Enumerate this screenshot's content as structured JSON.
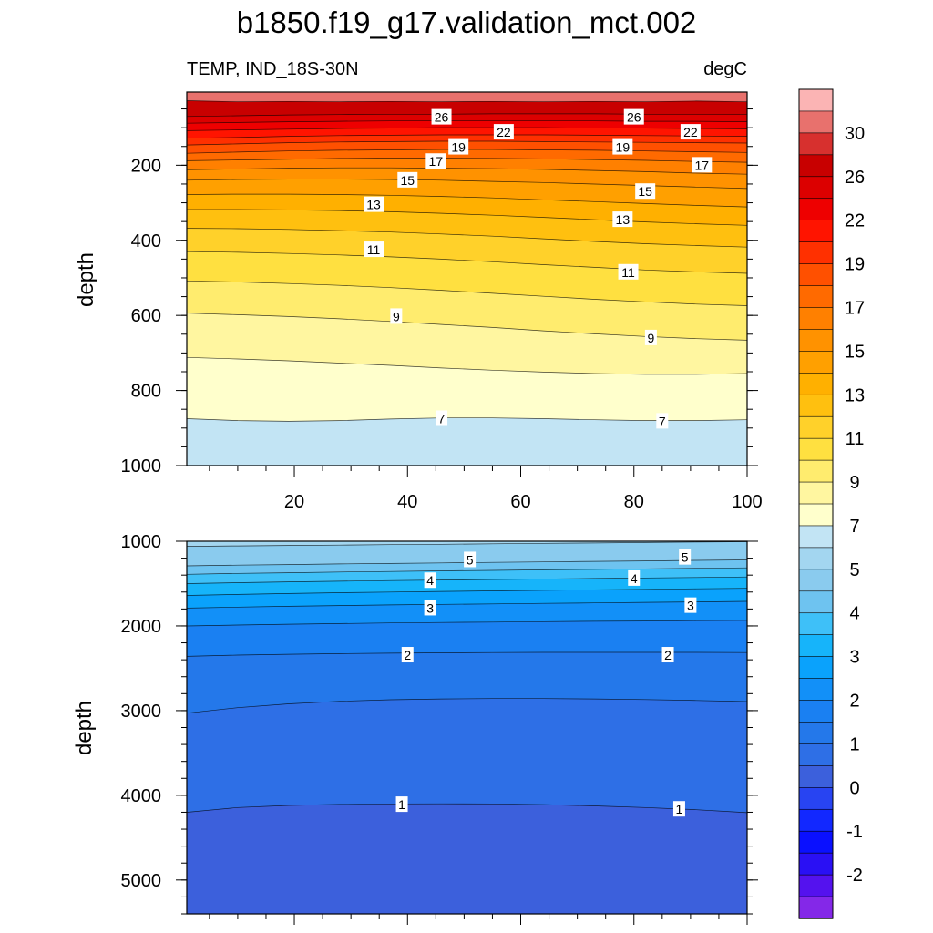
{
  "chart_data": [
    {
      "type": "contour",
      "panel": "upper",
      "title": "b1850.f19_g17.validation_mct.002",
      "left_subtitle": "TEMP, IND_18S-30N",
      "right_subtitle": "degC",
      "ylabel": "depth",
      "xlim": [
        1,
        100
      ],
      "ylim": [
        1000,
        5
      ],
      "y_reversed": true,
      "x_ticks": [
        20,
        40,
        60,
        80,
        100
      ],
      "y_ticks": [
        200,
        400,
        600,
        800,
        1000
      ],
      "isolines": [
        {
          "level": 27,
          "y": [
            28,
            31,
            30,
            31,
            30,
            31,
            30,
            31,
            30,
            31,
            29,
            31
          ]
        },
        {
          "level": 26,
          "y": [
            70,
            68,
            66,
            65,
            64,
            64,
            63,
            63,
            63,
            64,
            64,
            65
          ]
        },
        {
          "level": 24,
          "y": [
            88,
            86,
            84,
            83,
            82,
            82,
            82,
            82,
            82,
            83,
            83,
            84
          ]
        },
        {
          "level": 22,
          "y": [
            108,
            106,
            104,
            102,
            101,
            100,
            100,
            100,
            101,
            101,
            102,
            103
          ]
        },
        {
          "level": 20,
          "y": [
            128,
            126,
            123,
            121,
            120,
            119,
            119,
            119,
            120,
            121,
            122,
            123
          ]
        },
        {
          "level": 19,
          "y": [
            146,
            143,
            140,
            138,
            137,
            136,
            136,
            137,
            138,
            139,
            140,
            141
          ]
        },
        {
          "level": 18,
          "y": [
            168,
            165,
            162,
            160,
            159,
            158,
            158,
            159,
            160,
            162,
            164,
            166
          ]
        },
        {
          "level": 17,
          "y": [
            188,
            186,
            184,
            182,
            181,
            181,
            182,
            183,
            185,
            187,
            190,
            192
          ]
        },
        {
          "level": 16,
          "y": [
            212,
            210,
            208,
            207,
            207,
            208,
            209,
            211,
            214,
            217,
            221,
            224
          ]
        },
        {
          "level": 15,
          "y": [
            240,
            238,
            237,
            237,
            238,
            240,
            243,
            246,
            250,
            254,
            258,
            262
          ]
        },
        {
          "level": 14,
          "y": [
            278,
            277,
            277,
            278,
            280,
            283,
            287,
            292,
            297,
            302,
            307,
            311
          ]
        },
        {
          "level": 13,
          "y": [
            318,
            318,
            319,
            321,
            324,
            328,
            333,
            339,
            345,
            351,
            356,
            360
          ]
        },
        {
          "level": 12,
          "y": [
            368,
            369,
            371,
            374,
            378,
            383,
            389,
            396,
            403,
            409,
            414,
            418
          ]
        },
        {
          "level": 11,
          "y": [
            430,
            432,
            435,
            439,
            444,
            450,
            457,
            465,
            472,
            479,
            484,
            488
          ]
        },
        {
          "level": 10,
          "y": [
            508,
            511,
            515,
            520,
            526,
            533,
            541,
            549,
            557,
            564,
            570,
            574
          ]
        },
        {
          "level": 9,
          "y": [
            594,
            598,
            603,
            609,
            616,
            624,
            632,
            641,
            649,
            656,
            662,
            666
          ]
        },
        {
          "level": 8,
          "y": [
            712,
            716,
            721,
            727,
            733,
            740,
            746,
            751,
            755,
            757,
            757,
            755
          ]
        },
        {
          "level": 7,
          "y": [
            875,
            880,
            882,
            880,
            876,
            873,
            873,
            875,
            878,
            880,
            880,
            878
          ]
        }
      ],
      "labels": [
        {
          "text": "26",
          "x": 46,
          "y": 72
        },
        {
          "text": "26",
          "x": 80,
          "y": 72
        },
        {
          "text": "22",
          "x": 57,
          "y": 112
        },
        {
          "text": "22",
          "x": 90,
          "y": 112
        },
        {
          "text": "19",
          "x": 49,
          "y": 152
        },
        {
          "text": "19",
          "x": 78,
          "y": 152
        },
        {
          "text": "17",
          "x": 45,
          "y": 190
        },
        {
          "text": "17",
          "x": 92,
          "y": 200
        },
        {
          "text": "15",
          "x": 40,
          "y": 240
        },
        {
          "text": "15",
          "x": 82,
          "y": 270
        },
        {
          "text": "13",
          "x": 34,
          "y": 305
        },
        {
          "text": "13",
          "x": 78,
          "y": 345
        },
        {
          "text": "11",
          "x": 34,
          "y": 425
        },
        {
          "text": "11",
          "x": 79,
          "y": 485
        },
        {
          "text": "9",
          "x": 38,
          "y": 603
        },
        {
          "text": "9",
          "x": 83,
          "y": 660
        },
        {
          "text": "7",
          "x": 46,
          "y": 875
        },
        {
          "text": "7",
          "x": 85,
          "y": 882
        }
      ]
    },
    {
      "type": "contour",
      "panel": "lower",
      "ylabel": "depth",
      "xlim": [
        1,
        100
      ],
      "ylim": [
        5400,
        1000
      ],
      "y_reversed": true,
      "y_ticks": [
        1000,
        2000,
        3000,
        4000,
        5000
      ],
      "isolines": [
        {
          "level": 6,
          "y": [
            1060,
            1055,
            1050,
            1045,
            1040,
            1035,
            1030,
            1025,
            1020,
            1015,
            1010,
            1005
          ]
        },
        {
          "level": 5,
          "y": [
            1290,
            1282,
            1275,
            1268,
            1262,
            1256,
            1250,
            1244,
            1238,
            1232,
            1226,
            1220
          ]
        },
        {
          "level": 4.5,
          "y": [
            1390,
            1380,
            1372,
            1364,
            1357,
            1350,
            1344,
            1338,
            1332,
            1326,
            1320,
            1314
          ]
        },
        {
          "level": 4,
          "y": [
            1500,
            1490,
            1480,
            1472,
            1465,
            1458,
            1452,
            1446,
            1440,
            1434,
            1428,
            1422
          ]
        },
        {
          "level": 3.5,
          "y": [
            1640,
            1628,
            1617,
            1608,
            1600,
            1593,
            1586,
            1580,
            1574,
            1568,
            1562,
            1556
          ]
        },
        {
          "level": 3,
          "y": [
            1790,
            1778,
            1768,
            1760,
            1752,
            1746,
            1740,
            1734,
            1728,
            1722,
            1716,
            1710
          ]
        },
        {
          "level": 2.5,
          "y": [
            2000,
            1990,
            1980,
            1972,
            1965,
            1960,
            1955,
            1950,
            1946,
            1942,
            1938,
            1935
          ]
        },
        {
          "level": 2,
          "y": [
            2360,
            2345,
            2335,
            2328,
            2322,
            2318,
            2315,
            2313,
            2312,
            2312,
            2313,
            2315
          ]
        },
        {
          "level": 1.5,
          "y": [
            3030,
            2965,
            2920,
            2890,
            2872,
            2862,
            2858,
            2858,
            2862,
            2870,
            2880,
            2893
          ]
        },
        {
          "level": 1,
          "y": [
            4200,
            4145,
            4120,
            4108,
            4102,
            4100,
            4102,
            4110,
            4125,
            4145,
            4170,
            4205
          ]
        }
      ],
      "labels": [
        {
          "text": "5",
          "x": 51,
          "y": 1220
        },
        {
          "text": "5",
          "x": 89,
          "y": 1190
        },
        {
          "text": "4",
          "x": 44,
          "y": 1465
        },
        {
          "text": "4",
          "x": 80,
          "y": 1440
        },
        {
          "text": "3",
          "x": 44,
          "y": 1790
        },
        {
          "text": "3",
          "x": 90,
          "y": 1760
        },
        {
          "text": "2",
          "x": 40,
          "y": 2345
        },
        {
          "text": "2",
          "x": 86,
          "y": 2345
        },
        {
          "text": "1",
          "x": 39,
          "y": 4110
        },
        {
          "text": "1",
          "x": 88,
          "y": 4165
        }
      ]
    }
  ],
  "colorbar": {
    "labels": [
      "30",
      "26",
      "22",
      "19",
      "17",
      "15",
      "13",
      "11",
      "9",
      "7",
      "5",
      "4",
      "3",
      "2",
      "1",
      "0",
      "-1",
      "-2"
    ],
    "colors": [
      "#fbb4b4",
      "#e8716d",
      "#d7302e",
      "#c80000",
      "#dc0000",
      "#ee0000",
      "#ff1400",
      "#ff3000",
      "#ff5000",
      "#ff6a00",
      "#ff8000",
      "#ff9200",
      "#ffa000",
      "#ffb000",
      "#ffc00f",
      "#ffd12a",
      "#ffe040",
      "#ffec6e",
      "#fff6a0",
      "#ffffcc",
      "#c2e4f4",
      "#a3d6f0",
      "#8acbee",
      "#6ec3f0",
      "#3ec0f8",
      "#16b4fa",
      "#0aa2fc",
      "#1290f8",
      "#1a80f2",
      "#2478ea",
      "#2e6fe6",
      "#3c60dc",
      "#2844f2",
      "#1228ff",
      "#0a10ff",
      "#2a10f4",
      "#5412ee",
      "#8428e8"
    ]
  }
}
